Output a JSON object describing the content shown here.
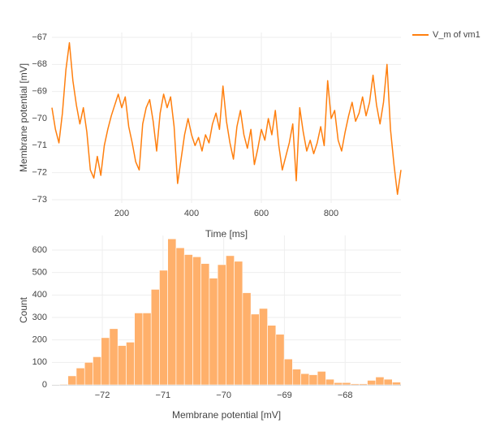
{
  "chart_data": [
    {
      "type": "line",
      "xlabel": "Time [ms]",
      "ylabel": "Membrane potential [mV]",
      "x": [
        0,
        10,
        20,
        30,
        40,
        50,
        60,
        70,
        80,
        90,
        100,
        110,
        120,
        130,
        140,
        150,
        160,
        170,
        180,
        190,
        200,
        210,
        220,
        230,
        240,
        250,
        260,
        270,
        280,
        290,
        300,
        310,
        320,
        330,
        340,
        350,
        360,
        370,
        380,
        390,
        400,
        410,
        420,
        430,
        440,
        450,
        460,
        470,
        480,
        490,
        500,
        510,
        520,
        530,
        540,
        550,
        560,
        570,
        580,
        590,
        600,
        610,
        620,
        630,
        640,
        650,
        660,
        670,
        680,
        690,
        700,
        710,
        720,
        730,
        740,
        750,
        760,
        770,
        780,
        790,
        800,
        810,
        820,
        830,
        840,
        850,
        860,
        870,
        880,
        890,
        900,
        910,
        920,
        930,
        940,
        950,
        960,
        970,
        980,
        990,
        1000
      ],
      "series": [
        {
          "name": "V_m of vm1",
          "color": "#ff7f0e",
          "values": [
            -69.6,
            -70.4,
            -70.9,
            -69.8,
            -68.2,
            -67.2,
            -68.6,
            -69.5,
            -70.2,
            -69.6,
            -70.5,
            -71.9,
            -72.2,
            -71.4,
            -72.1,
            -71.0,
            -70.4,
            -69.9,
            -69.5,
            -69.1,
            -69.6,
            -69.2,
            -70.3,
            -70.9,
            -71.6,
            -71.9,
            -70.2,
            -69.6,
            -69.3,
            -70.1,
            -71.2,
            -69.8,
            -69.1,
            -69.6,
            -69.2,
            -70.3,
            -72.4,
            -71.5,
            -70.6,
            -70.0,
            -70.6,
            -71.0,
            -70.7,
            -71.2,
            -70.6,
            -70.9,
            -70.2,
            -69.8,
            -70.4,
            -68.8,
            -70.1,
            -70.9,
            -71.5,
            -70.3,
            -69.7,
            -70.6,
            -71.1,
            -70.4,
            -71.7,
            -71.1,
            -70.4,
            -70.8,
            -70.0,
            -70.6,
            -69.7,
            -71.0,
            -71.9,
            -71.4,
            -70.9,
            -70.2,
            -72.3,
            -69.6,
            -70.5,
            -71.2,
            -70.8,
            -71.3,
            -70.9,
            -70.3,
            -71.0,
            -68.6,
            -70.0,
            -69.7,
            -70.8,
            -71.2,
            -70.5,
            -69.9,
            -69.4,
            -70.1,
            -69.8,
            -69.2,
            -69.9,
            -69.4,
            -68.4,
            -69.5,
            -70.2,
            -69.4,
            -68.0,
            -70.4,
            -71.7,
            -72.8,
            -71.9
          ]
        }
      ],
      "xlim": [
        0,
        1000
      ],
      "xticks": [
        200,
        400,
        600,
        800
      ],
      "ylim": [
        -73.12,
        -66.82
      ],
      "yticks": [
        {
          "value": -67,
          "label": "−67"
        },
        {
          "value": -68,
          "label": "−68"
        },
        {
          "value": -69,
          "label": "−69"
        },
        {
          "value": -70,
          "label": "−70"
        },
        {
          "value": -71,
          "label": "−71"
        },
        {
          "value": -72,
          "label": "−72"
        },
        {
          "value": -73,
          "label": "−73"
        }
      ],
      "grid": true,
      "legend": "outside-right"
    },
    {
      "type": "histogram",
      "xlabel": "Membrane potential [mV]",
      "ylabel": "Count",
      "color": "#ffb06b",
      "bins": [
        -72.84,
        -72.703,
        -72.566,
        -72.429,
        -72.292,
        -72.155,
        -72.018,
        -71.881,
        -71.744,
        -71.607,
        -71.47,
        -71.333,
        -71.196,
        -71.059,
        -70.922,
        -70.785,
        -70.648,
        -70.511,
        -70.374,
        -70.237,
        -70.1,
        -69.963,
        -69.826,
        -69.689,
        -69.552,
        -69.415,
        -69.278,
        -69.141,
        -69.004,
        -68.867,
        -68.73,
        -68.593,
        -68.456,
        -68.319,
        -68.182,
        -68.045,
        -67.908,
        -67.771,
        -67.634,
        -67.497,
        -67.36,
        -67.223,
        -67.086
      ],
      "values": [
        2,
        3,
        40,
        75,
        100,
        125,
        210,
        250,
        175,
        190,
        320,
        320,
        425,
        510,
        650,
        610,
        580,
        570,
        540,
        475,
        535,
        575,
        550,
        410,
        315,
        340,
        265,
        225,
        115,
        70,
        50,
        45,
        60,
        25,
        10,
        10,
        5,
        5,
        20,
        35,
        25,
        12
      ],
      "xlim": [
        -72.83,
        -67.08
      ],
      "xticks": [
        {
          "value": -72,
          "label": "−72"
        },
        {
          "value": -71,
          "label": "−71"
        },
        {
          "value": -70,
          "label": "−70"
        },
        {
          "value": -69,
          "label": "−69"
        },
        {
          "value": -68,
          "label": "−68"
        }
      ],
      "ylim": [
        0,
        665
      ],
      "yticks": [
        0,
        100,
        200,
        300,
        400,
        500,
        600
      ],
      "grid": true
    }
  ]
}
